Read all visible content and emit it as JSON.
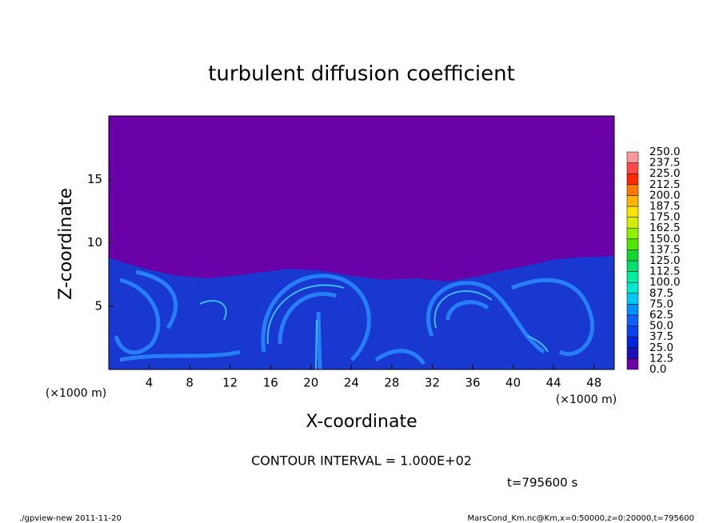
{
  "chart_data": {
    "type": "heatmap",
    "title": "turbulent diffusion coefficient",
    "x_label": "X-coordinate",
    "y_label": "Z-coordinate",
    "x_unit": "(×1000 m)",
    "y_unit": "(×1000 m)",
    "xlim": [
      0,
      50
    ],
    "ylim": [
      0,
      20
    ],
    "xticks": [
      4,
      8,
      12,
      16,
      20,
      24,
      28,
      32,
      36,
      40,
      44,
      48
    ],
    "yticks": [
      5,
      10,
      15
    ],
    "colorbar": {
      "levels": [
        {
          "value": 0,
          "label": "0.0"
        },
        12.5,
        {
          "value": 25,
          "label": "25.0"
        },
        37.5,
        {
          "value": 50,
          "label": "50.0"
        },
        62.5,
        {
          "value": 75,
          "label": "75.0"
        },
        87.5,
        {
          "value": 100,
          "label": "100.0"
        },
        112.5,
        {
          "value": 125,
          "label": "125.0"
        },
        137.5,
        {
          "value": 150,
          "label": "150.0"
        },
        162.5,
        {
          "value": 175,
          "label": "175.0"
        },
        187.5,
        {
          "value": 200,
          "label": "200.0"
        },
        212.5,
        {
          "value": 225,
          "label": "225.0"
        },
        237.5,
        {
          "value": 250,
          "label": "250.0"
        }
      ],
      "colors": [
        "#6a00a8",
        "#1a10b8",
        "#0024d8",
        "#0a40f0",
        "#1060ff",
        "#0090ff",
        "#00c8f8",
        "#00e8d0",
        "#00f0a0",
        "#00e070",
        "#10d830",
        "#50e800",
        "#90f000",
        "#d0f000",
        "#ffe400",
        "#ffb400",
        "#ff7800",
        "#ff2800",
        "#ff4848",
        "#ff9898"
      ]
    },
    "contour_note": "CONTOUR INTERVAL = 1.000E+02",
    "time_label": "t=795600 s",
    "footer_left": "./gpview-new  2011-11-20",
    "footer_right": "MarsCond_Km.nc@Km,x=0:50000,z=0:20000,t=795600"
  }
}
